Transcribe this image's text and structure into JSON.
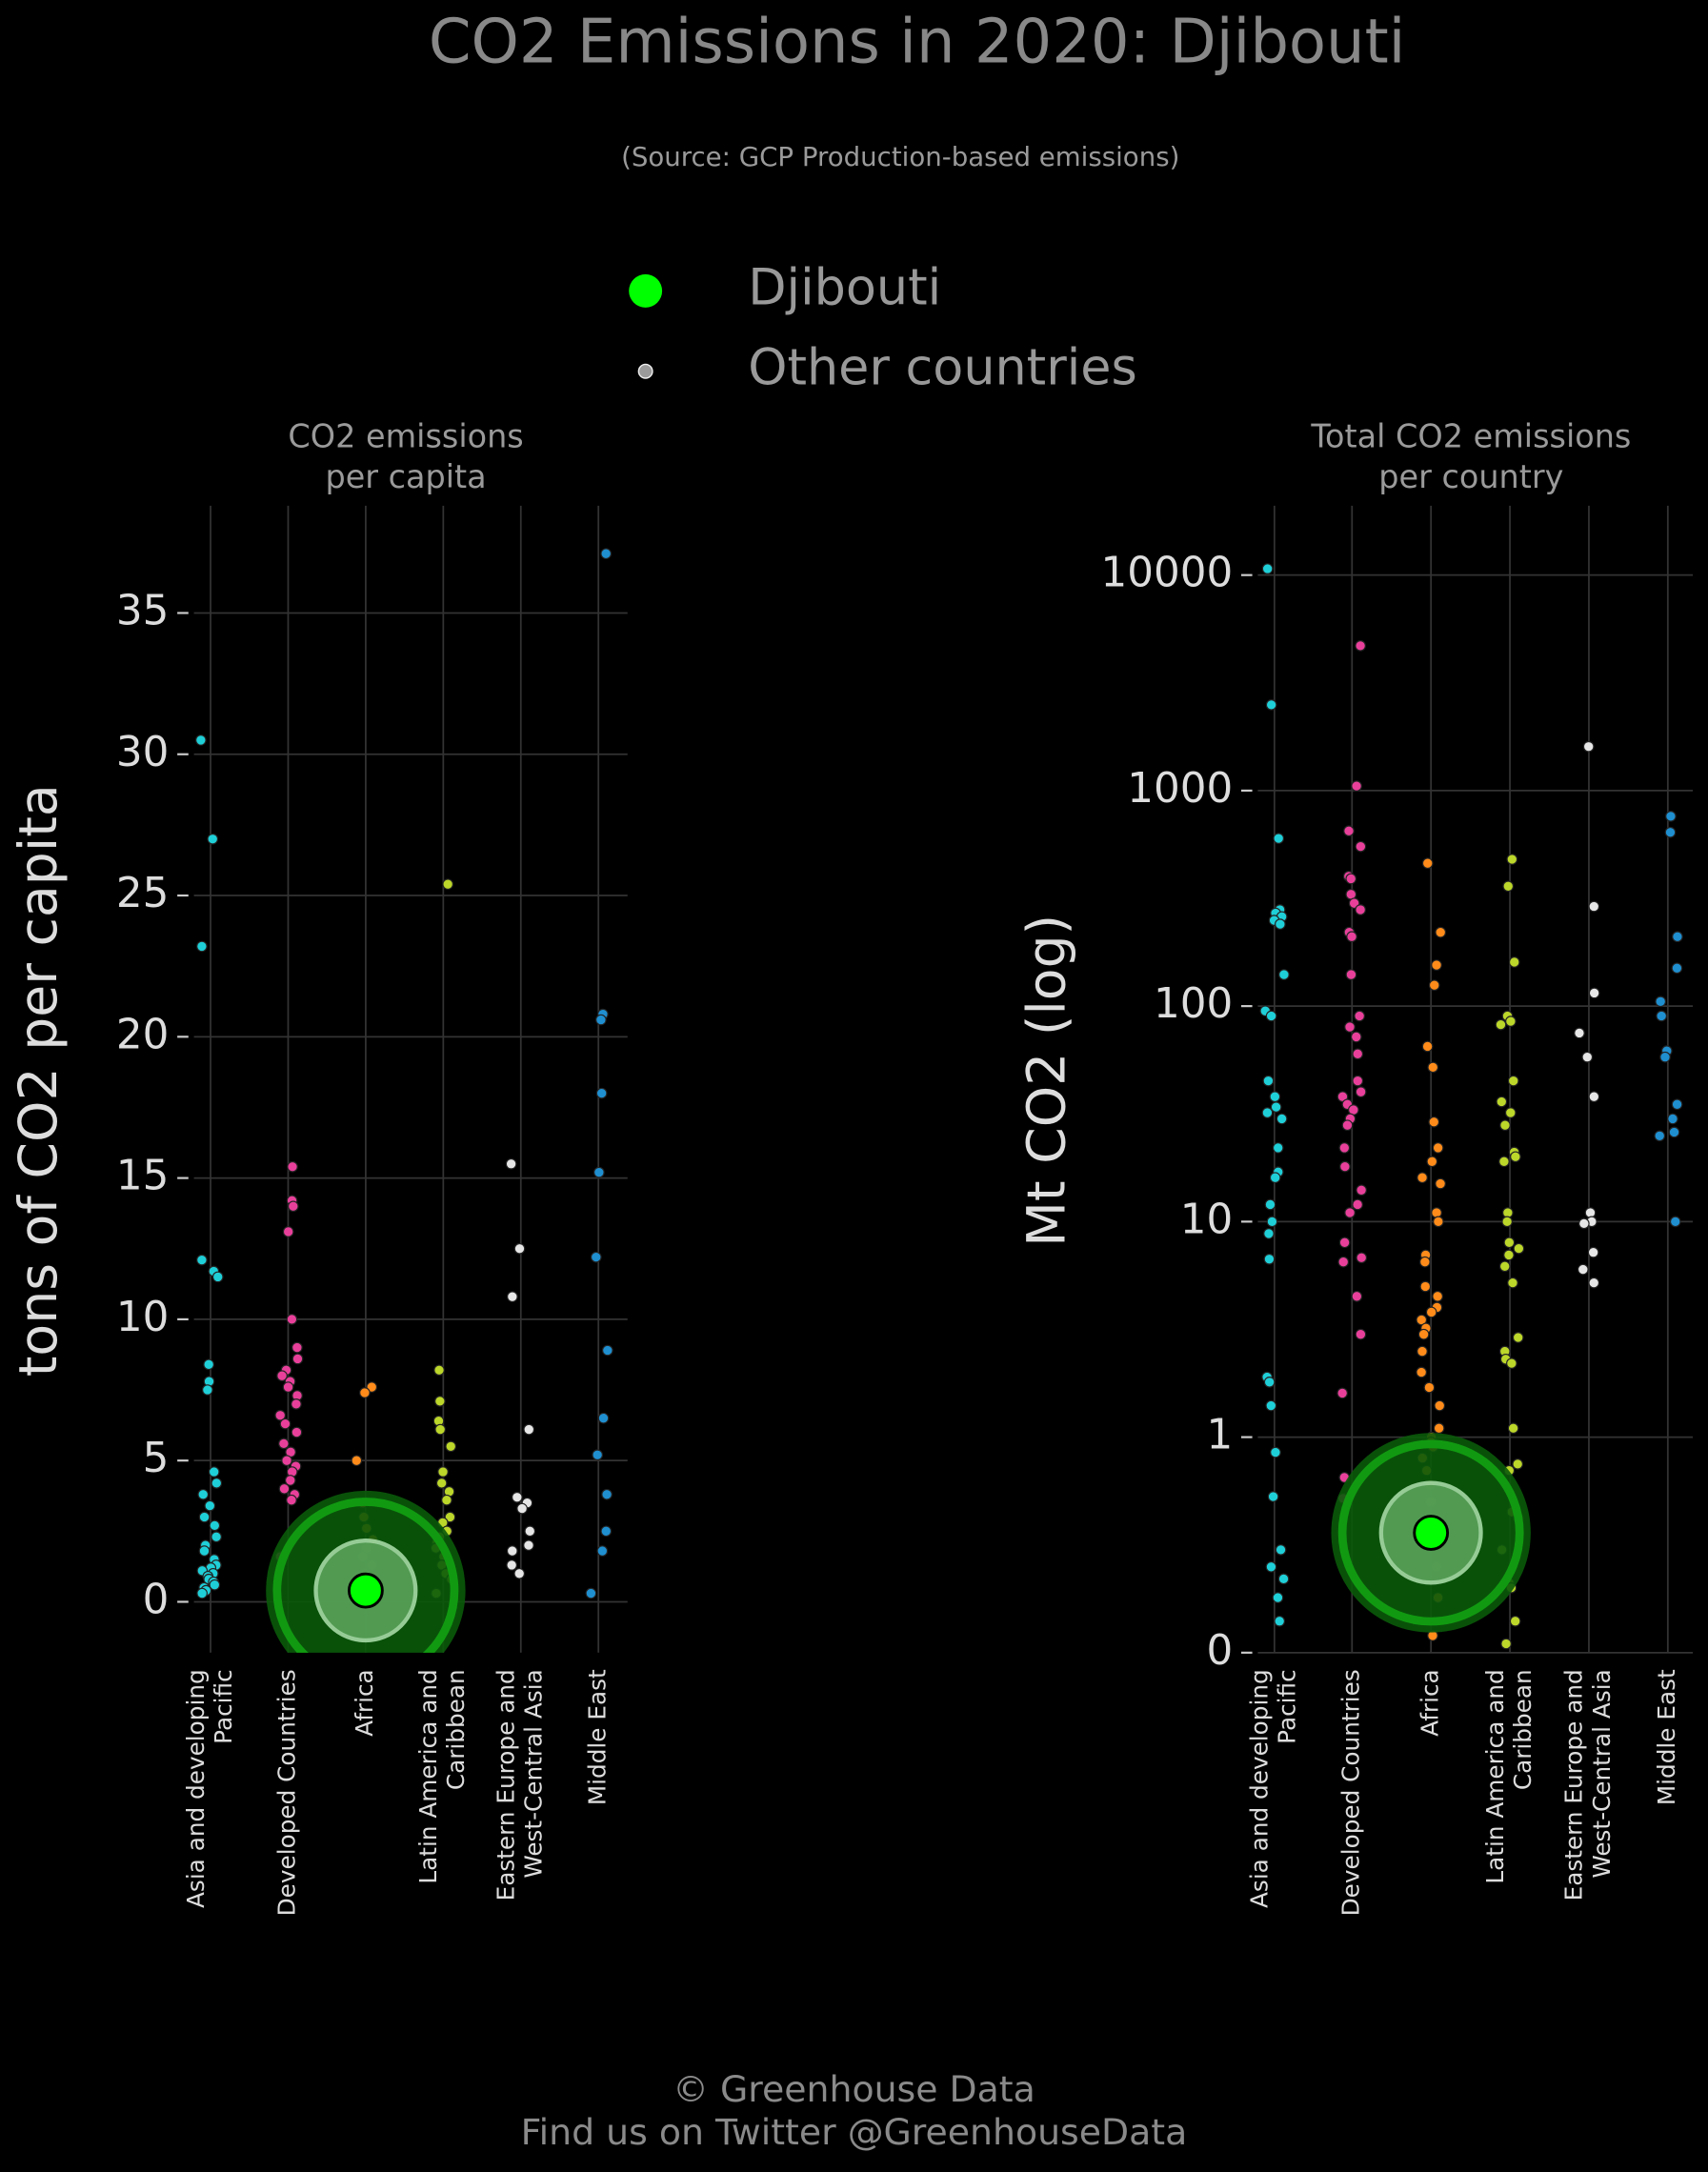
{
  "title": "CO2 Emissions in 2020: Djibouti",
  "subtitle": "(Source: GCP Production-based emissions)",
  "footer": [
    "© Greenhouse Data",
    "Find us on Twitter @GreenhouseData"
  ],
  "chart_data": [
    {
      "type": "strip",
      "title": "CO2 emissions\nper capita",
      "y_label": "tons of CO2 per capita",
      "categories": [
        "Asia and developing\nPacific",
        "Developed Countries",
        "Africa",
        "Latin America and\nCaribbean",
        "Eastern Europe and\nWest-Central Asia",
        "Middle East"
      ],
      "category_colors": [
        "#1fcfd8",
        "#e8409a",
        "#ff8c1a",
        "#bcd62a",
        "#e6e6e6",
        "#1f8fd0"
      ],
      "ylim": [
        -1.8,
        38.8
      ],
      "yticks": [
        0,
        5,
        10,
        15,
        20,
        25,
        30,
        35
      ],
      "grid": true,
      "yscale": "linear",
      "series": [
        {
          "name": "Other countries",
          "color": "#9a9a9a",
          "values": [
            [
              30.5,
              27,
              23.2,
              12.1,
              11.7,
              11.5,
              8.4,
              7.8,
              7.5,
              4.6,
              4.2,
              3.8,
              3.4,
              3.0,
              2.7,
              2.3,
              2.0,
              1.8,
              1.5,
              1.3,
              1.2,
              1.1,
              1.0,
              0.9,
              0.8,
              0.7,
              0.6,
              0.5,
              0.4,
              0.3
            ],
            [
              15.4,
              14.2,
              14.0,
              13.1,
              10.0,
              9.0,
              8.6,
              8.2,
              8.0,
              7.8,
              7.6,
              7.3,
              7.0,
              6.6,
              6.3,
              6.0,
              5.6,
              5.3,
              5.0,
              4.8,
              4.6,
              4.3,
              4.0,
              3.8,
              3.6,
              1.6
            ],
            [
              7.6,
              7.4,
              5.0,
              3.5,
              3.0,
              2.6,
              2.2,
              1.9,
              1.6,
              1.3,
              1.0,
              0.8,
              0.6,
              0.5,
              0.4,
              0.3,
              0.2,
              0.1
            ],
            [
              25.4,
              8.2,
              7.1,
              6.4,
              6.1,
              5.5,
              4.6,
              4.2,
              3.9,
              3.6,
              3.0,
              2.8,
              2.5,
              2.3,
              2.1,
              1.9,
              1.6,
              1.3,
              1.0,
              0.8,
              0.3
            ],
            [
              15.5,
              12.5,
              10.8,
              6.1,
              3.7,
              3.5,
              3.3,
              2.5,
              2.0,
              1.8,
              1.3,
              1.0
            ],
            [
              37.1,
              20.8,
              20.6,
              18.0,
              15.2,
              12.2,
              8.9,
              6.5,
              5.2,
              3.8,
              2.5,
              1.8,
              0.3
            ]
          ]
        },
        {
          "name": "Djibouti",
          "color": "#00ff00",
          "values": [
            null,
            null,
            0.4,
            null,
            null,
            null
          ]
        }
      ]
    },
    {
      "type": "strip",
      "title": "Total CO2 emissions\nper country",
      "y_label": "Mt CO2 (log)",
      "categories": [
        "Asia and developing\nPacific",
        "Developed Countries",
        "Africa",
        "Latin America and\nCaribbean",
        "Eastern Europe and\nWest-Central Asia",
        "Middle East"
      ],
      "category_colors": [
        "#1fcfd8",
        "#e8409a",
        "#ff8c1a",
        "#bcd62a",
        "#e6e6e6",
        "#1f8fd0"
      ],
      "ylim": [
        0.1,
        21000
      ],
      "yticks": [
        {
          "value": 0.1,
          "label": "0"
        },
        1,
        10,
        100,
        1000,
        10000
      ],
      "grid": true,
      "yscale": "log",
      "series": [
        {
          "name": "Other countries",
          "color": "#9a9a9a",
          "values": [
            [
              10700,
              2500,
              600,
              280,
              270,
              260,
              250,
              240,
              140,
              95,
              90,
              45,
              38,
              34,
              32,
              30,
              22,
              17,
              16,
              12,
              10,
              8.8,
              6.7,
              1.9,
              1.8,
              1.4,
              0.85,
              0.53,
              0.3,
              0.25,
              0.22,
              0.18,
              0.14
            ],
            [
              4700,
              1050,
              650,
              550,
              400,
              390,
              330,
              300,
              280,
              220,
              210,
              140,
              90,
              80,
              72,
              60,
              45,
              40,
              38,
              35,
              33,
              30,
              28,
              22,
              18,
              14,
              12,
              11,
              8,
              6.8,
              6.5,
              4.5,
              3,
              1.6,
              0.65,
              0.52
            ],
            [
              460,
              220,
              155,
              125,
              65,
              52,
              29,
              22,
              19,
              16,
              15,
              11,
              10,
              7,
              6.5,
              5,
              4.5,
              4,
              3.8,
              3.5,
              3.2,
              3,
              2.5,
              2.0,
              1.7,
              1.4,
              1.1,
              1.0,
              0.95,
              0.9,
              0.8,
              0.7,
              0.6,
              0.5,
              0.4,
              0.32,
              0.25,
              0.18,
              0.12
            ],
            [
              480,
              360,
              160,
              90,
              85,
              82,
              45,
              36,
              32,
              28,
              21,
              20,
              19,
              11,
              10,
              8,
              7.5,
              7,
              6.2,
              5.2,
              2.9,
              2.5,
              2.3,
              2.2,
              1.1,
              0.75,
              0.7,
              0.45,
              0.42,
              0.3,
              0.21,
              0.2,
              0.14,
              0.11
            ],
            [
              1600,
              290,
              115,
              75,
              58,
              38,
              11,
              10,
              9.8,
              7.2,
              6,
              5.2
            ],
            [
              760,
              640,
              210,
              150,
              105,
              90,
              62,
              58,
              35,
              30,
              26,
              25,
              10
            ]
          ]
        },
        {
          "name": "Djibouti",
          "color": "#00ff00",
          "values": [
            null,
            null,
            0.36,
            null,
            null,
            null
          ]
        }
      ]
    }
  ]
}
